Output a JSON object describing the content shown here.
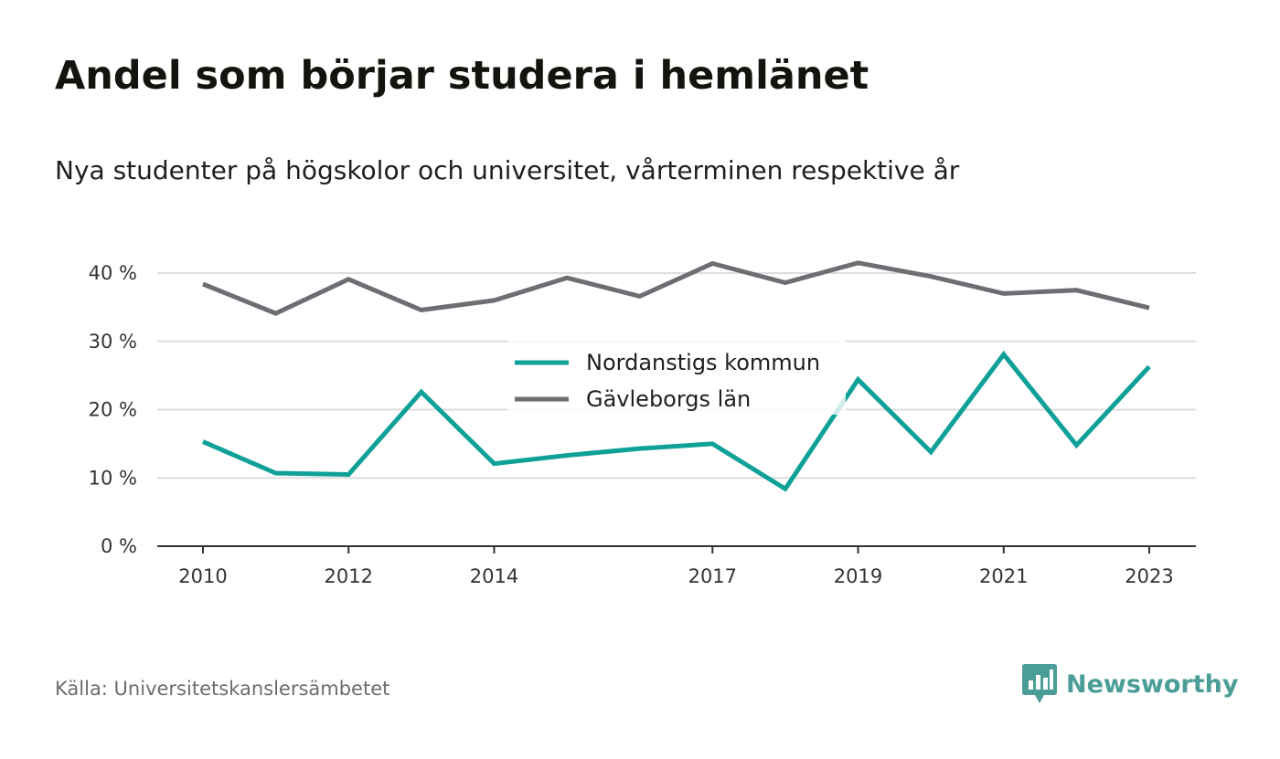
{
  "header": {
    "title": "Andel som börjar studera i hemlänet",
    "subtitle": "Nya studenter på högskolor och universitet, vårterminen respektive år"
  },
  "footer": {
    "source": "Källa: Universitetskanslersämbetet",
    "brand": "Newsworthy",
    "brand_icon": "bar-chart-speech-bubble-icon"
  },
  "colors": {
    "nordanstig": "#0fa198",
    "gavleborg": "#6e6d73",
    "grid": "#dddddd",
    "axis": "#333333",
    "brand": "#4a9e97"
  },
  "chart_data": {
    "type": "line",
    "x": [
      2010,
      2011,
      2012,
      2013,
      2014,
      2015,
      2016,
      2017,
      2018,
      2019,
      2020,
      2021,
      2022,
      2023
    ],
    "x_tick_labels": [
      "2010",
      "2012",
      "2014",
      "2017",
      "2019",
      "2021",
      "2023"
    ],
    "y_tick_labels": [
      "0 %",
      "10 %",
      "20 %",
      "30 %",
      "40 %"
    ],
    "y_ticks": [
      0,
      10,
      20,
      30,
      40
    ],
    "ylim": [
      0,
      40
    ],
    "grid": true,
    "legend_position": "center",
    "series": [
      {
        "name": "Nordanstigs kommun",
        "color": "#0fa198",
        "values": [
          15.3,
          10.7,
          10.5,
          22.6,
          12.1,
          13.3,
          14.3,
          15.0,
          8.4,
          24.4,
          13.8,
          28.1,
          14.8,
          26.3
        ]
      },
      {
        "name": "Gävleborgs län",
        "color": "#6e6d73",
        "values": [
          38.4,
          34.1,
          39.1,
          34.6,
          36.0,
          39.3,
          36.6,
          41.4,
          38.6,
          41.5,
          39.5,
          37.0,
          37.5,
          34.9
        ]
      }
    ]
  }
}
